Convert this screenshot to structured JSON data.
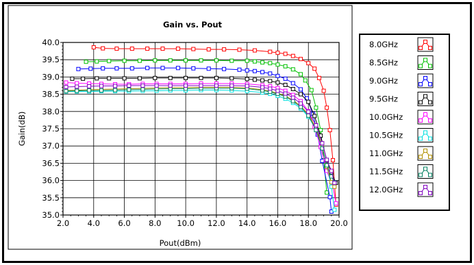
{
  "chart_data": {
    "type": "line",
    "title": "Gain vs. Pout",
    "xlabel": "Pout(dBm)",
    "ylabel": "Gain(dB)",
    "xlim": [
      2.0,
      20.0
    ],
    "ylim": [
      35.0,
      40.0
    ],
    "x_ticks": [
      "2.0",
      "4.0",
      "6.0",
      "8.0",
      "10.0",
      "12.0",
      "14.0",
      "16.0",
      "18.0",
      "20.0"
    ],
    "y_ticks": [
      "35.0",
      "35.5",
      "36.0",
      "36.5",
      "37.0",
      "37.5",
      "38.0",
      "38.5",
      "39.0",
      "39.5",
      "40.0"
    ],
    "grid": true,
    "legend_position": "right",
    "series": [
      {
        "name": "8.0GHz",
        "color": "#ff0000",
        "points": [
          [
            4.0,
            39.86
          ],
          [
            4.6,
            39.83
          ],
          [
            5.5,
            39.82
          ],
          [
            6.5,
            39.82
          ],
          [
            7.5,
            39.82
          ],
          [
            8.5,
            39.82
          ],
          [
            9.5,
            39.82
          ],
          [
            10.5,
            39.81
          ],
          [
            11.5,
            39.8
          ],
          [
            12.5,
            39.8
          ],
          [
            13.5,
            39.79
          ],
          [
            14.5,
            39.77
          ],
          [
            15.5,
            39.73
          ],
          [
            16.0,
            39.7
          ],
          [
            16.5,
            39.67
          ],
          [
            17.0,
            39.61
          ],
          [
            17.5,
            39.52
          ],
          [
            18.0,
            39.4
          ],
          [
            18.4,
            39.24
          ],
          [
            18.7,
            38.97
          ],
          [
            19.0,
            38.6
          ],
          [
            19.2,
            38.11
          ],
          [
            19.4,
            37.46
          ],
          [
            19.6,
            36.59
          ],
          [
            19.8,
            35.3
          ]
        ]
      },
      {
        "name": "8.5GHz",
        "color": "#00c000",
        "points": [
          [
            3.5,
            39.44
          ],
          [
            4.2,
            39.45
          ],
          [
            5.0,
            39.46
          ],
          [
            6.0,
            39.47
          ],
          [
            7.0,
            39.47
          ],
          [
            8.0,
            39.48
          ],
          [
            9.0,
            39.48
          ],
          [
            10.0,
            39.48
          ],
          [
            11.0,
            39.48
          ],
          [
            12.0,
            39.48
          ],
          [
            13.0,
            39.47
          ],
          [
            14.0,
            39.47
          ],
          [
            14.5,
            39.45
          ],
          [
            15.0,
            39.42
          ],
          [
            15.5,
            39.4
          ],
          [
            16.0,
            39.36
          ],
          [
            16.5,
            39.31
          ],
          [
            17.0,
            39.22
          ],
          [
            17.5,
            39.08
          ],
          [
            17.8,
            38.9
          ],
          [
            18.2,
            38.62
          ],
          [
            18.5,
            38.11
          ],
          [
            18.8,
            37.46
          ],
          [
            19.0,
            36.59
          ],
          [
            19.2,
            35.65
          ]
        ]
      },
      {
        "name": "9.0GHz",
        "color": "#0000ff",
        "points": [
          [
            3.0,
            39.23
          ],
          [
            3.8,
            39.24
          ],
          [
            4.6,
            39.25
          ],
          [
            5.5,
            39.25
          ],
          [
            6.5,
            39.25
          ],
          [
            7.5,
            39.26
          ],
          [
            8.5,
            39.26
          ],
          [
            9.5,
            39.26
          ],
          [
            10.5,
            39.25
          ],
          [
            11.5,
            39.24
          ],
          [
            12.5,
            39.23
          ],
          [
            13.5,
            39.21
          ],
          [
            14.0,
            39.19
          ],
          [
            14.5,
            39.17
          ],
          [
            15.0,
            39.14
          ],
          [
            15.5,
            39.1
          ],
          [
            16.0,
            39.03
          ],
          [
            16.5,
            38.95
          ],
          [
            17.0,
            38.82
          ],
          [
            17.5,
            38.64
          ],
          [
            17.9,
            38.38
          ],
          [
            18.3,
            37.93
          ],
          [
            18.6,
            37.33
          ],
          [
            18.9,
            36.57
          ],
          [
            19.4,
            35.52
          ],
          [
            19.5,
            35.1
          ]
        ]
      },
      {
        "name": "9.5GHz",
        "color": "#000000",
        "points": [
          [
            2.6,
            38.95
          ],
          [
            3.3,
            38.95
          ],
          [
            4.2,
            38.96
          ],
          [
            5.0,
            38.96
          ],
          [
            6.0,
            38.96
          ],
          [
            7.0,
            38.96
          ],
          [
            8.0,
            38.97
          ],
          [
            9.0,
            38.97
          ],
          [
            10.0,
            38.97
          ],
          [
            11.0,
            38.97
          ],
          [
            12.0,
            38.97
          ],
          [
            13.0,
            38.96
          ],
          [
            14.0,
            38.94
          ],
          [
            14.5,
            38.92
          ],
          [
            15.0,
            38.9
          ],
          [
            15.5,
            38.88
          ],
          [
            16.0,
            38.84
          ],
          [
            16.5,
            38.77
          ],
          [
            17.0,
            38.65
          ],
          [
            17.5,
            38.5
          ],
          [
            18.0,
            38.28
          ],
          [
            18.4,
            37.87
          ],
          [
            18.8,
            37.3
          ],
          [
            19.2,
            36.58
          ],
          [
            19.5,
            36.23
          ],
          [
            19.8,
            35.93
          ]
        ]
      },
      {
        "name": "10.0GHz",
        "color": "#ff00ff",
        "points": [
          [
            2.2,
            38.84
          ],
          [
            2.9,
            38.82
          ],
          [
            3.7,
            38.81
          ],
          [
            4.5,
            38.8
          ],
          [
            5.4,
            38.79
          ],
          [
            6.3,
            38.79
          ],
          [
            7.2,
            38.8
          ],
          [
            8.1,
            38.8
          ],
          [
            9.0,
            38.8
          ],
          [
            10.0,
            38.8
          ],
          [
            11.0,
            38.81
          ],
          [
            12.0,
            38.81
          ],
          [
            13.0,
            38.81
          ],
          [
            14.0,
            38.8
          ],
          [
            15.0,
            38.76
          ],
          [
            15.5,
            38.73
          ],
          [
            16.0,
            38.68
          ],
          [
            16.5,
            38.6
          ],
          [
            17.0,
            38.48
          ],
          [
            17.5,
            38.3
          ],
          [
            18.0,
            38.01
          ],
          [
            18.4,
            37.56
          ],
          [
            18.8,
            36.97
          ],
          [
            19.2,
            36.28
          ],
          [
            19.6,
            35.82
          ],
          [
            19.8,
            35.34
          ]
        ]
      },
      {
        "name": "10.5GHz",
        "color": "#00e0e0",
        "points": [
          [
            2.2,
            38.58
          ],
          [
            2.9,
            38.58
          ],
          [
            3.7,
            38.58
          ],
          [
            4.5,
            38.59
          ],
          [
            5.4,
            38.59
          ],
          [
            6.3,
            38.59
          ],
          [
            7.2,
            38.6
          ],
          [
            8.1,
            38.6
          ],
          [
            9.0,
            38.61
          ],
          [
            10.0,
            38.61
          ],
          [
            11.0,
            38.62
          ],
          [
            12.0,
            38.62
          ],
          [
            13.0,
            38.61
          ],
          [
            14.0,
            38.59
          ],
          [
            15.0,
            38.55
          ],
          [
            15.5,
            38.51
          ],
          [
            16.0,
            38.45
          ],
          [
            16.5,
            38.37
          ],
          [
            17.0,
            38.25
          ],
          [
            17.5,
            38.09
          ],
          [
            18.0,
            37.85
          ],
          [
            18.5,
            37.48
          ],
          [
            18.9,
            36.98
          ],
          [
            19.2,
            36.43
          ],
          [
            19.5,
            35.82
          ],
          [
            19.7,
            35.15
          ]
        ]
      },
      {
        "name": "11.0GHz",
        "color": "#b09000",
        "points": [
          [
            2.2,
            38.61
          ],
          [
            2.9,
            38.62
          ],
          [
            3.7,
            38.63
          ],
          [
            4.5,
            38.64
          ],
          [
            5.4,
            38.65
          ],
          [
            6.3,
            38.66
          ],
          [
            7.2,
            38.67
          ],
          [
            8.1,
            38.68
          ],
          [
            9.0,
            38.69
          ],
          [
            10.0,
            38.69
          ],
          [
            11.0,
            38.7
          ],
          [
            12.0,
            38.7
          ],
          [
            13.0,
            38.7
          ],
          [
            14.0,
            38.68
          ],
          [
            15.0,
            38.63
          ],
          [
            15.5,
            38.59
          ],
          [
            16.0,
            38.53
          ],
          [
            16.5,
            38.45
          ],
          [
            17.0,
            38.33
          ],
          [
            17.5,
            38.16
          ],
          [
            18.0,
            37.92
          ],
          [
            18.5,
            37.52
          ],
          [
            18.9,
            36.99
          ],
          [
            19.2,
            36.4
          ],
          [
            19.5,
            35.95
          ],
          [
            19.7,
            35.82
          ]
        ]
      },
      {
        "name": "11.5GHz",
        "color": "#008060",
        "points": [
          [
            2.2,
            38.59
          ],
          [
            2.9,
            38.6
          ],
          [
            3.7,
            38.61
          ],
          [
            4.5,
            38.61
          ],
          [
            5.4,
            38.62
          ],
          [
            6.3,
            38.63
          ],
          [
            7.2,
            38.64
          ],
          [
            8.1,
            38.65
          ],
          [
            9.0,
            38.66
          ],
          [
            10.0,
            38.66
          ],
          [
            11.0,
            38.67
          ],
          [
            12.0,
            38.67
          ],
          [
            13.0,
            38.67
          ],
          [
            14.0,
            38.66
          ],
          [
            15.0,
            38.61
          ],
          [
            15.5,
            38.57
          ],
          [
            16.0,
            38.51
          ],
          [
            16.5,
            38.43
          ],
          [
            17.0,
            38.3
          ],
          [
            17.5,
            38.13
          ],
          [
            18.0,
            37.88
          ],
          [
            18.5,
            37.46
          ],
          [
            18.9,
            36.93
          ],
          [
            19.2,
            36.44
          ],
          [
            19.5,
            36.12
          ],
          [
            19.7,
            35.95
          ]
        ]
      },
      {
        "name": "12.0GHz",
        "color": "#8000c0",
        "points": [
          [
            2.2,
            38.71
          ],
          [
            2.9,
            38.72
          ],
          [
            3.7,
            38.73
          ],
          [
            4.5,
            38.74
          ],
          [
            5.4,
            38.74
          ],
          [
            6.3,
            38.75
          ],
          [
            7.2,
            38.75
          ],
          [
            8.1,
            38.75
          ],
          [
            9.0,
            38.75
          ],
          [
            10.0,
            38.75
          ],
          [
            11.0,
            38.75
          ],
          [
            12.0,
            38.75
          ],
          [
            13.0,
            38.75
          ],
          [
            14.0,
            38.74
          ],
          [
            15.0,
            38.7
          ],
          [
            15.5,
            38.66
          ],
          [
            16.0,
            38.6
          ],
          [
            16.5,
            38.52
          ],
          [
            17.0,
            38.4
          ],
          [
            17.5,
            38.23
          ],
          [
            18.0,
            37.99
          ],
          [
            18.5,
            37.6
          ],
          [
            18.9,
            37.08
          ],
          [
            19.2,
            36.6
          ],
          [
            19.5,
            36.28
          ],
          [
            19.7,
            35.93
          ]
        ]
      }
    ]
  }
}
